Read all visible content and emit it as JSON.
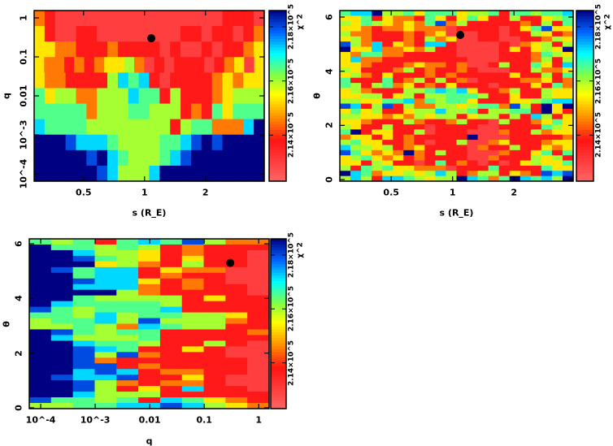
{
  "value_codes": {
    "P": 2.13,
    "R": 2.137,
    "O": 2.145,
    "Y": 2.153,
    "L": 2.16,
    "G": 2.165,
    "C": 2.172,
    "B": 2.18,
    "N": 2.19
  },
  "value_scale": "x10^5",
  "chart_data": [
    {
      "type": "heatmap",
      "xlabel": "s (R_E)",
      "ylabel": "q",
      "xscale": "log",
      "yscale": "log",
      "xlim": [
        0.285,
        3.9
      ],
      "ylim": [
        6.5e-05,
        1.54
      ],
      "xticks": [
        {
          "v": 0.5,
          "label": "0.5"
        },
        {
          "v": 1,
          "label": "1"
        },
        {
          "v": 2,
          "label": "2"
        }
      ],
      "yticks": [
        {
          "v": 1,
          "label": "1"
        },
        {
          "v": 0.1,
          "label": "0.1"
        },
        {
          "v": 0.01,
          "label": "0.01"
        },
        {
          "v": 0.001,
          "label": "10^-3"
        },
        {
          "v": 0.0001,
          "label": "10^-4"
        }
      ],
      "colorbar": {
        "label": "χ^2",
        "range": [
          2.123,
          2.186
        ],
        "ticks": [
          {
            "v": 2.14,
            "label": "2.14×10^5"
          },
          {
            "v": 2.16,
            "label": "2.16×10^5"
          },
          {
            "v": 2.18,
            "label": "2.18×10^5"
          }
        ]
      },
      "best_fit": {
        "x": 1.08,
        "y": 0.3
      },
      "rows": [
        "ORPPPPPPPPPPPPPPPPRRRP",
        "YRPPRRPPPPPPPPRRPRRPRO",
        "YYOORRRORRRRPRPPRPRROY",
        "YOOROROYYLOPRPRRRPROYPY",
        "YOORRRRLCGCRPRRRROYOYY",
        "GYLLOOLLLCGGRLRRROYLLL",
        "GGGGGOLLLGGLLLRORGYGGG",
        "CGGGGLLLLLLLLRLGGOOOCN",
        "NNNBCCCGLLLLGGCBNBNNNN",
        "NNNNNBNCGLLLGCBNNNNNNN",
        "NNNNNNBCLLLCNNNNNNNNNN"
      ]
    },
    {
      "type": "heatmap",
      "xlabel": "s (R_E)",
      "ylabel": "θ",
      "xscale": "log",
      "yscale": "linear",
      "xlim": [
        0.28,
        3.9
      ],
      "ylim": [
        -0.06,
        6.24
      ],
      "xticks": [
        {
          "v": 0.5,
          "label": "0.5"
        },
        {
          "v": 1,
          "label": "1"
        },
        {
          "v": 2,
          "label": "2"
        }
      ],
      "yticks": [
        {
          "v": 0,
          "label": "0"
        },
        {
          "v": 2,
          "label": "2"
        },
        {
          "v": 4,
          "label": "4"
        },
        {
          "v": 6,
          "label": "6"
        }
      ],
      "colorbar": {
        "label": "χ^2",
        "range": [
          2.123,
          2.186
        ],
        "ticks": [
          {
            "v": 2.14,
            "label": "2.14×10^5"
          },
          {
            "v": 2.16,
            "label": "2.16×10^5"
          },
          {
            "v": 2.18,
            "label": "2.18×10^5"
          }
        ]
      },
      "best_fit": {
        "x": 1.09,
        "y": 5.34
      },
      "rows": [
        "GCCNLLGYGGGYLLGRGGLGGC",
        "YYGRYOORGYRYGYRRLRRYLG",
        "LYGLYOYOGBOLRRRRRORLRG",
        "YYOROOYOOOPRRRRPRYGBYY",
        "LOORRROROYPPPRRPRRLYRO",
        "YLORRRORLOYPPRRPPRROLY",
        "BLOCRYORCCRPPPPRPOYLRL",
        "NYYCOOYOLRRPPPPRYRYLYN",
        "YOGGOORRRRRPPPPRRROGLY",
        "YCOORRRRRRRRPPPRRROLRL",
        "YYORRROYOOROPPRLRRGYRC",
        "LYRRROLRORRORPPPRRLOOY",
        "YLORYRRRORORRRRRYRRLRG",
        "GRRRGROLRLROPRRRROOYRO",
        "GLRLGOYRORYRRRPRRRYRGO",
        "YLORRRLLGCGCYRROLRRLYY",
        "YYLLRYLRLLGGGLRRYRRLYY",
        "LLYYGGCOGLGGYRRRYYLGCC",
        "BCRLBRLOOLLYLGGOBLRNYN",
        "YGYLRRYLLCLLGRLLGGRNYR",
        "LLYYOYOLYLLRYLLRLRCLRY",
        "YYORRRLORROLRRPLRROYGY",
        "LYRRLRRRPRRRRPPRRRRGLY",
        "GNRYYRRLPRRRPPPORRLOYY",
        "OYYRYRORRRRRNPPPRRRRRO",
        "LGYYRRORPRRLPPOYRRROYY",
        "CLLYLROYRRRRPORRLRRYOY",
        "BGYOYONORLRRPPPORRYGRG",
        "YLGYOYRORRRRPPORRRLYLR",
        "YYRLYRRPRGRORPRPRYLYYG",
        "LRGLGYYOOOPRRRGRRRRGYY",
        "NCGOYYLYLCLROLLRYORBCB",
        "LCLRCCGLYLLNCGOGNCGCLN"
      ]
    },
    {
      "type": "heatmap",
      "xlabel": "q",
      "ylabel": "θ",
      "xscale": "log",
      "yscale": "linear",
      "xlim": [
        6.17e-05,
        1.55
      ],
      "ylim": [
        -0.03,
        6.18
      ],
      "xticks": [
        {
          "v": 0.0001,
          "label": "10^-4"
        },
        {
          "v": 0.001,
          "label": "10^-3"
        },
        {
          "v": 0.01,
          "label": "0.01"
        },
        {
          "v": 0.1,
          "label": "0.1"
        },
        {
          "v": 1,
          "label": "1"
        }
      ],
      "yticks": [
        {
          "v": 0,
          "label": "0"
        },
        {
          "v": 2,
          "label": "2"
        },
        {
          "v": 4,
          "label": "4"
        },
        {
          "v": 6,
          "label": "6"
        }
      ],
      "colorbar": {
        "label": "χ^2",
        "range": [
          2.123,
          2.186
        ],
        "ticks": [
          {
            "v": 2.14,
            "label": "2.14×10^5"
          },
          {
            "v": 2.16,
            "label": "2.16×10^5"
          },
          {
            "v": 2.18,
            "label": "2.18×10^5"
          }
        ]
      },
      "best_fit": {
        "x": 0.3,
        "y": 5.3
      },
      "rows": [
        "GLGRGCGBLOO",
        "NGGLGLRORRR",
        "NNCLLYRORRP",
        "NNBGLYRYRRP",
        "NNNYLORLRRP",
        "NBGCCRYOOPP",
        "NNGCCRORRPP",
        "NNBCCYRORPP",
        "NNCCCORORRP",
        "NNNNLORRRRP",
        "NNGLLLLRYRR",
        "NCGGGGLRRRR",
        "BGLGGGCRRRR",
        "GGLCLGGLLYR",
        "LGGCLBLLLOR",
        "LLGLOCGLLRR",
        "NBGLGGRRRRO",
        "NCLLLGRRRRR",
        "NNCGGLRRLRP",
        "NNBCGRRYRPP",
        "NNBLBORRRPP",
        "NNBORRRRRRP",
        "NNBBRORRRRP",
        "NNCBCROORRP",
        "NBCCBRRYRPP",
        "NNBLOROORPP",
        "NNBLRYRCRRP",
        "NNCLLLRRRRR",
        "BGGLGRCGYOR",
        "LLGGCCBCLYO"
      ]
    }
  ]
}
